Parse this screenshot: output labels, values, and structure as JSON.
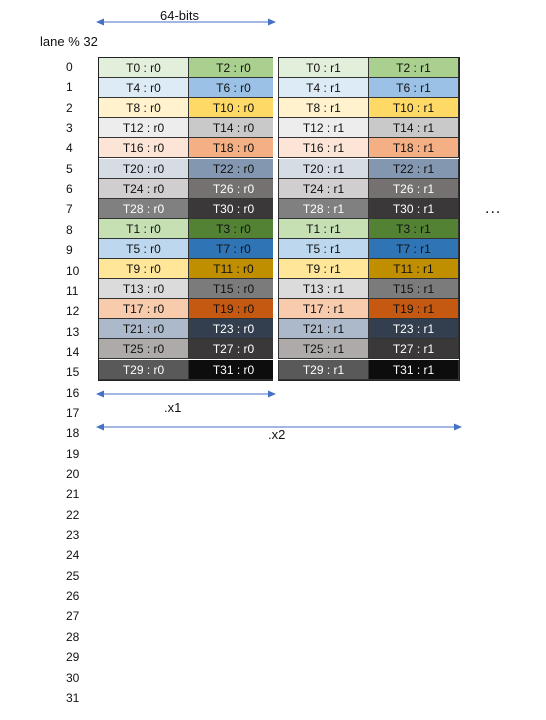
{
  "title": "64-bits",
  "lane_header": "lane % 32",
  "lanes": [
    "0",
    "1",
    "2",
    "3",
    "4",
    "5",
    "6",
    "7",
    "8",
    "9",
    "10",
    "11",
    "12",
    "13",
    "14",
    "15",
    "16",
    "17",
    "18",
    "19",
    "20",
    "21",
    "22",
    "23",
    "24",
    "25",
    "26",
    "27",
    "28",
    "29",
    "30",
    "31"
  ],
  "rows": [
    {
      "cells": [
        "T0 : r0",
        "T2 : r0",
        "T0 : r1",
        "T2 : r1"
      ],
      "colors": [
        "#e2efda",
        "#a9d08e",
        "#e2efda",
        "#a9d08e"
      ],
      "text_colors": [
        "#111",
        "#111",
        "#111",
        "#111"
      ]
    },
    {
      "cells": [
        "T4 : r0",
        "T6 : r0",
        "T4 : r1",
        "T6 : r1"
      ],
      "colors": [
        "#ddebf7",
        "#9bc2e6",
        "#ddebf7",
        "#9bc2e6"
      ],
      "text_colors": [
        "#111",
        "#111",
        "#111",
        "#111"
      ]
    },
    {
      "cells": [
        "T8 : r0",
        "T10 : r0",
        "T8 : r1",
        "T10 : r1"
      ],
      "colors": [
        "#fff2cc",
        "#ffd966",
        "#fff2cc",
        "#ffd966"
      ],
      "text_colors": [
        "#111",
        "#111",
        "#111",
        "#111"
      ]
    },
    {
      "cells": [
        "T12 : r0",
        "T14 : r0",
        "T12 : r1",
        "T14 : r1"
      ],
      "colors": [
        "#ededed",
        "#c9c9c9",
        "#ededed",
        "#c9c9c9"
      ],
      "text_colors": [
        "#111",
        "#111",
        "#111",
        "#111"
      ]
    },
    {
      "cells": [
        "T16 : r0",
        "T18 : r0",
        "T16 : r1",
        "T18 : r1"
      ],
      "colors": [
        "#fce4d6",
        "#f4b084",
        "#fce4d6",
        "#f4b084"
      ],
      "text_colors": [
        "#111",
        "#111",
        "#111",
        "#111"
      ]
    },
    {
      "cells": [
        "T20 : r0",
        "T22 : r0",
        "T20 : r1",
        "T22 : r1"
      ],
      "colors": [
        "#d6dce4",
        "#8497b0",
        "#d6dce4",
        "#8497b0"
      ],
      "text_colors": [
        "#111",
        "#111",
        "#111",
        "#111"
      ]
    },
    {
      "cells": [
        "T24 : r0",
        "T26 : r0",
        "T24 : r1",
        "T26 : r1"
      ],
      "colors": [
        "#d0cece",
        "#757171",
        "#d0cece",
        "#757171"
      ],
      "text_colors": [
        "#111",
        "#ffffff",
        "#111",
        "#ffffff"
      ]
    },
    {
      "cells": [
        "T28 : r0",
        "T30 : r0",
        "T28 : r1",
        "T30 : r1"
      ],
      "colors": [
        "#808080",
        "#3a3838",
        "#808080",
        "#3a3838"
      ],
      "text_colors": [
        "#ffffff",
        "#ffffff",
        "#ffffff",
        "#ffffff"
      ]
    },
    {
      "cells": [
        "T1 : r0",
        "T3 : r0",
        "T1 : r1",
        "T3 : r1"
      ],
      "colors": [
        "#c6e0b4",
        "#548235",
        "#c6e0b4",
        "#548235"
      ],
      "text_colors": [
        "#111",
        "#111",
        "#111",
        "#111"
      ]
    },
    {
      "cells": [
        "T5 : r0",
        "T7 : r0",
        "T5 : r1",
        "T7 : r1"
      ],
      "colors": [
        "#bdd7ee",
        "#2f75b5",
        "#bdd7ee",
        "#2f75b5"
      ],
      "text_colors": [
        "#111",
        "#111",
        "#111",
        "#111"
      ]
    },
    {
      "cells": [
        "T9 : r0",
        "T11 : r0",
        "T9 : r1",
        "T11 : r1"
      ],
      "colors": [
        "#ffe699",
        "#bf8f00",
        "#ffe699",
        "#bf8f00"
      ],
      "text_colors": [
        "#111",
        "#111",
        "#111",
        "#111"
      ]
    },
    {
      "cells": [
        "T13 : r0",
        "T15 : r0",
        "T13 : r1",
        "T15 : r1"
      ],
      "colors": [
        "#dbdbdb",
        "#7b7b7b",
        "#dbdbdb",
        "#7b7b7b"
      ],
      "text_colors": [
        "#111",
        "#111",
        "#111",
        "#111"
      ]
    },
    {
      "cells": [
        "T17 : r0",
        "T19 : r0",
        "T17 : r1",
        "T19 : r1"
      ],
      "colors": [
        "#f8cbad",
        "#c65911",
        "#f8cbad",
        "#c65911"
      ],
      "text_colors": [
        "#111",
        "#111",
        "#111",
        "#111"
      ]
    },
    {
      "cells": [
        "T21 : r0",
        "T23 : r0",
        "T21 : r1",
        "T23 : r1"
      ],
      "colors": [
        "#acb9ca",
        "#333f4f",
        "#acb9ca",
        "#333f4f"
      ],
      "text_colors": [
        "#111",
        "#ffffff",
        "#111",
        "#ffffff"
      ]
    },
    {
      "cells": [
        "T25 : r0",
        "T27 : r0",
        "T25 : r1",
        "T27 : r1"
      ],
      "colors": [
        "#aeaaaa",
        "#3a3838",
        "#aeaaaa",
        "#3a3838"
      ],
      "text_colors": [
        "#111",
        "#ffffff",
        "#111",
        "#ffffff"
      ]
    },
    {
      "cells": [
        "T29 : r0",
        "T31 : r0",
        "T29 : r1",
        "T31 : r1"
      ],
      "colors": [
        "#595959",
        "#0d0d0d",
        "#595959",
        "#0d0d0d"
      ],
      "text_colors": [
        "#ffffff",
        "#ffffff",
        "#ffffff",
        "#ffffff"
      ]
    }
  ],
  "span_x1": ".x1",
  "span_x2": ".x2",
  "ellipsis": "...",
  "arrow_color": "#4472c4"
}
